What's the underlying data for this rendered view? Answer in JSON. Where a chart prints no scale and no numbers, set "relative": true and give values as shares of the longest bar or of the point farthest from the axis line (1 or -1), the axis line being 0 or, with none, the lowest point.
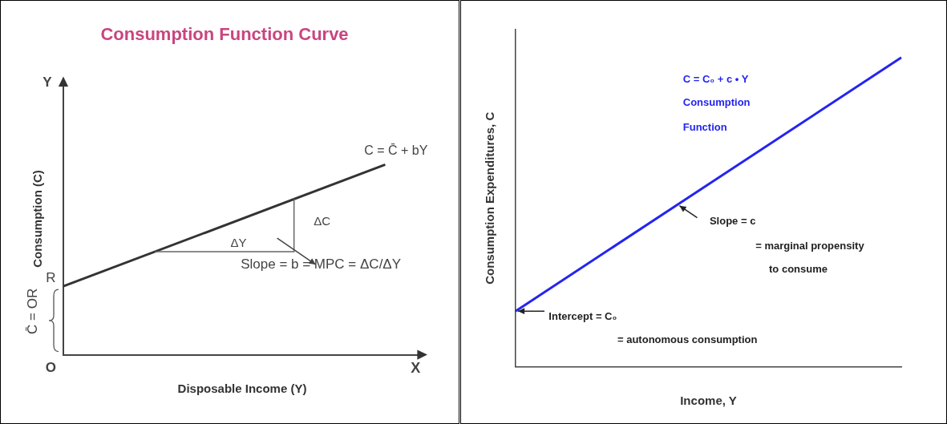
{
  "chart_data": [
    {
      "type": "line",
      "title": "Consumption Function Curve",
      "xlabel": "Disposable Income (Y)",
      "ylabel": "Consumption (C)",
      "relative": true,
      "legend": false,
      "categories": [
        null,
        null,
        null,
        null,
        null,
        null,
        null,
        null,
        null,
        null,
        null
      ],
      "series": [
        {
          "color": "#333333",
          "values": [
            0.36,
            null,
            null,
            null,
            null,
            null,
            null,
            null,
            null,
            1,
            null
          ]
        }
      ],
      "annotations": [
        "C = C̄ + bY",
        "ΔC",
        "ΔY",
        "Slope = b = MPC = ΔC/ΔY",
        "R",
        "O",
        "Y",
        "X",
        "C̄ = OR"
      ]
    },
    {
      "type": "line",
      "xlabel": "Income, Y",
      "ylabel": "Consumption Expenditures, C",
      "relative": true,
      "legend": false,
      "categories": [
        null,
        null,
        null,
        null,
        null,
        null,
        null,
        null,
        null,
        null,
        null
      ],
      "series": [
        {
          "color": "#2424f0",
          "values": [
            0.18,
            null,
            null,
            null,
            null,
            null,
            null,
            null,
            null,
            null,
            1
          ]
        }
      ],
      "annotations": [
        "C = C₀ + c • Y",
        "Consumption",
        "Function",
        "Slope = c",
        "= marginal propensity",
        "to consume",
        "Intercept = C₀",
        "= autonomous consumption"
      ]
    }
  ]
}
